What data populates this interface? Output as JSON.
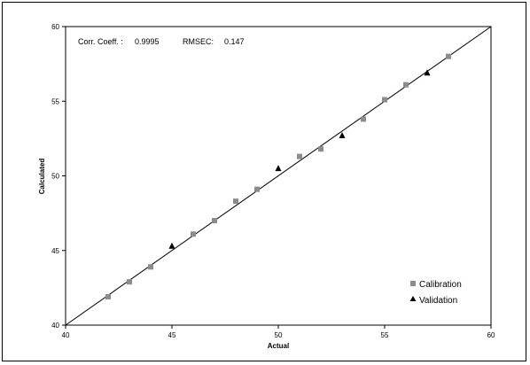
{
  "chart_data": {
    "type": "scatter",
    "xlabel": "Actual",
    "ylabel": "Calculated",
    "xlim": [
      40,
      60
    ],
    "ylim": [
      40,
      60
    ],
    "x_ticks": [
      "40",
      "45",
      "50",
      "55",
      "60"
    ],
    "y_ticks": [
      "40",
      "45",
      "50",
      "55",
      "60"
    ],
    "grid": false,
    "legend_position": "bottom-right",
    "reference_line": "y = x",
    "annotation": {
      "corr_label": "Corr. Coeff. :",
      "corr_value": "0.9995",
      "rmsec_label": "RMSEC:",
      "rmsec_value": "0.147"
    },
    "series": [
      {
        "name": "Calibration",
        "marker": "square",
        "color": "#8c8c8c",
        "points": [
          {
            "x": 42,
            "y": 41.9
          },
          {
            "x": 43,
            "y": 42.9
          },
          {
            "x": 44,
            "y": 43.9
          },
          {
            "x": 46,
            "y": 46.1
          },
          {
            "x": 47,
            "y": 47.0
          },
          {
            "x": 48,
            "y": 48.3
          },
          {
            "x": 49,
            "y": 49.1
          },
          {
            "x": 51,
            "y": 51.3
          },
          {
            "x": 52,
            "y": 51.8
          },
          {
            "x": 54,
            "y": 53.8
          },
          {
            "x": 55,
            "y": 55.1
          },
          {
            "x": 56,
            "y": 56.1
          },
          {
            "x": 58,
            "y": 58.0
          }
        ]
      },
      {
        "name": "Validation",
        "marker": "triangle",
        "color": "#000000",
        "points": [
          {
            "x": 45,
            "y": 45.3
          },
          {
            "x": 50,
            "y": 50.5
          },
          {
            "x": 53,
            "y": 52.7
          },
          {
            "x": 57,
            "y": 56.9
          }
        ]
      }
    ]
  }
}
